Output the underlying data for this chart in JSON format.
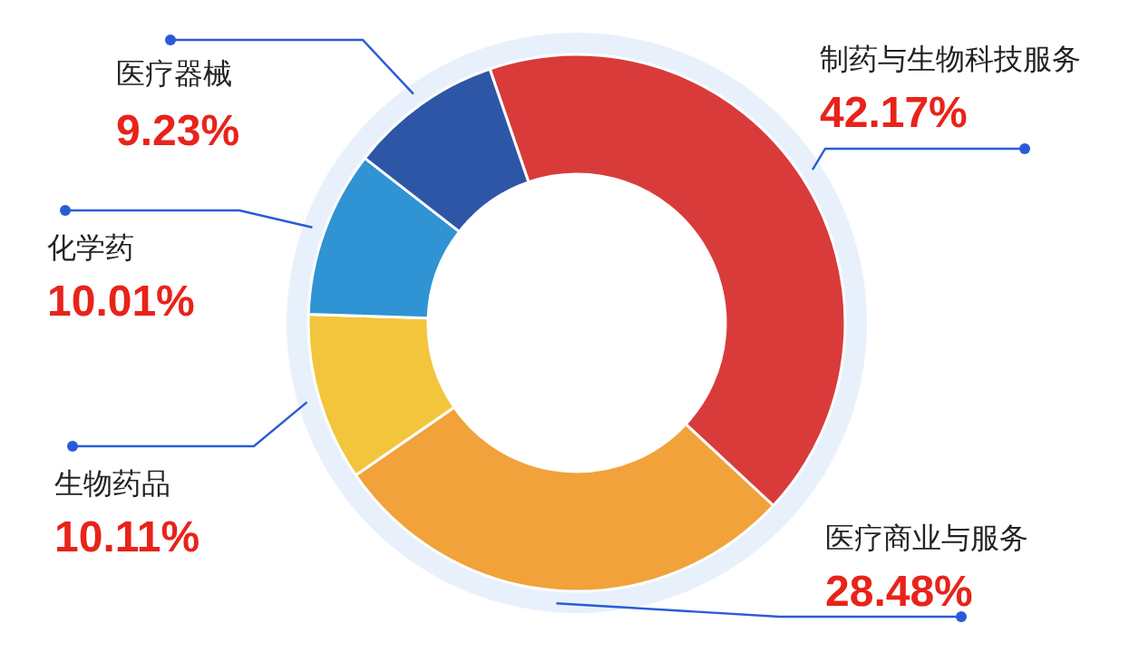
{
  "chart_data": {
    "type": "donut",
    "categories": [
      "制药与生物科技服务",
      "医疗商业与服务",
      "生物药品",
      "化学药",
      "医疗器械"
    ],
    "values": [
      42.17,
      28.48,
      10.11,
      10.01,
      9.23
    ],
    "value_labels": [
      "42.17%",
      "28.48%",
      "10.11%",
      "10.01%",
      "9.23%"
    ],
    "colors": [
      "#d93b3b",
      "#f1a23a",
      "#f3c53c",
      "#2f93d4",
      "#2e56a6"
    ]
  }
}
